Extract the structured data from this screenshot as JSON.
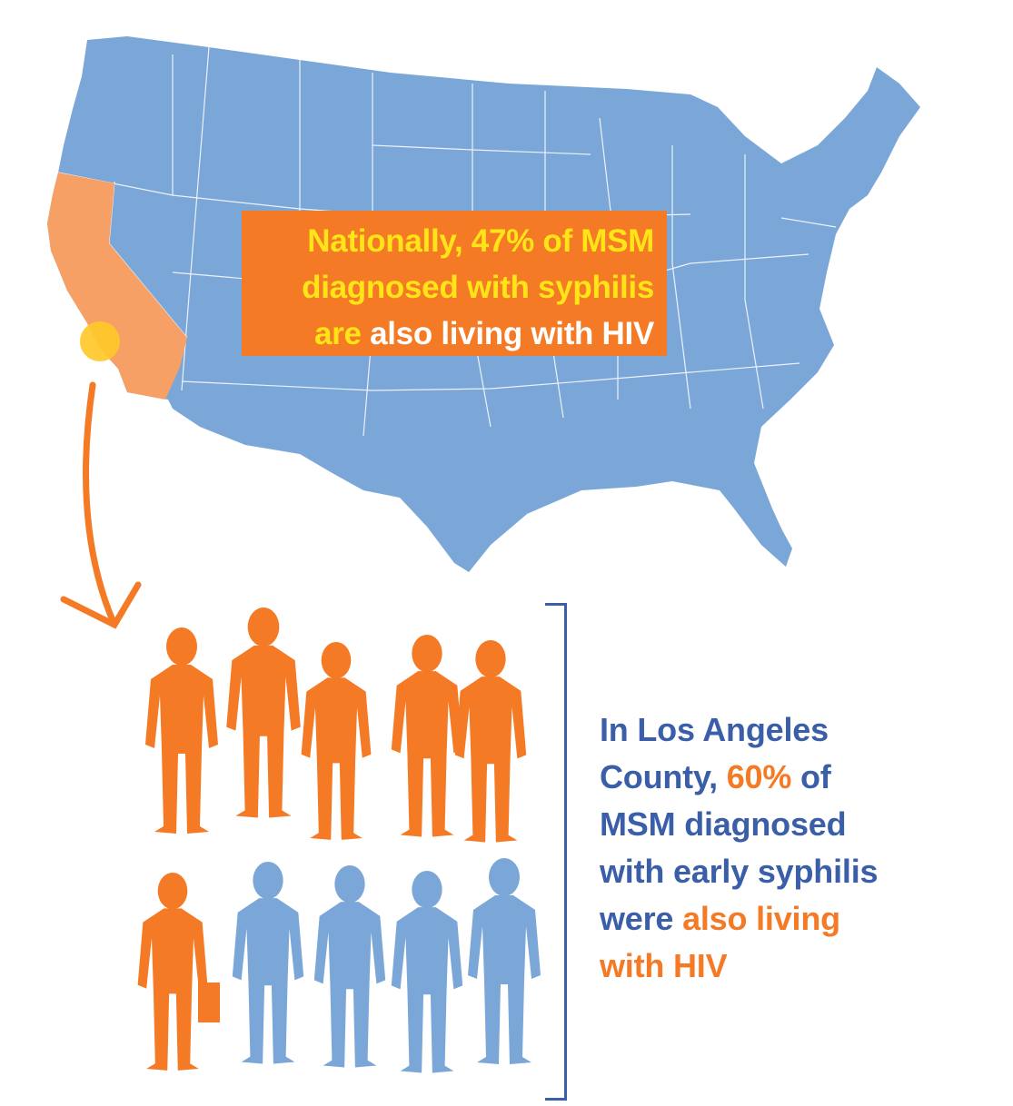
{
  "map": {
    "colors": {
      "states": "#7ba7d8",
      "california": "#f6a065",
      "los_angeles_marker": "#ffc82a"
    },
    "highlighted_state": "California",
    "marker_location": "Los Angeles County"
  },
  "national_callout": {
    "line1_a": "Nationally, 47% of MSM",
    "line2_a": "diagnosed with syphilis",
    "line3_a": "are",
    "line3_b": " also living with HIV"
  },
  "la_callout": {
    "line1": "In Los Angeles",
    "line2_a": "County, ",
    "line2_b": "60%",
    "line2_c": " of",
    "line3": "MSM diagnosed",
    "line4": "with early syphilis",
    "line5_a": "were ",
    "line5_b": "also living",
    "line6": "with HIV"
  },
  "people": {
    "colors": {
      "with_hiv": "#f47a25",
      "without_hiv": "#7ba7d8"
    },
    "total": 10,
    "with_hiv_count": 6
  }
}
